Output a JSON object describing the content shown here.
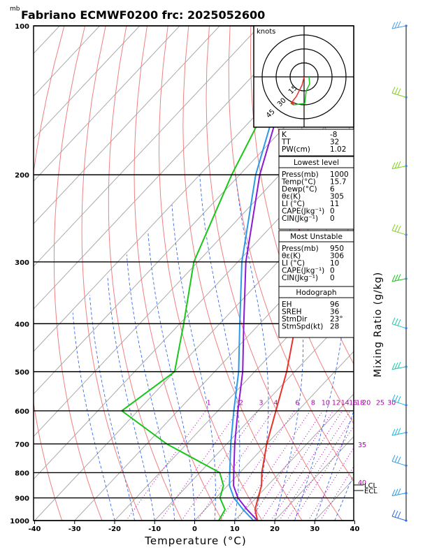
{
  "header": {
    "unit": "mb",
    "title": "Fabriano ECMWF0200 frc: 2025052600"
  },
  "chart_data": {
    "type": "skew-t",
    "xlabel": "Temperature (°C)",
    "ylabel": "Mixing Ratio (g/kg)",
    "pressure_ticks": [
      100,
      200,
      300,
      400,
      500,
      600,
      700,
      800,
      900,
      1000
    ],
    "temperature_ticks": [
      -40,
      -30,
      -20,
      -10,
      0,
      10,
      20,
      30,
      40
    ],
    "xlim": [
      -40,
      40
    ],
    "ylim": [
      1000,
      100
    ],
    "temperature_profile": [
      {
        "p": 1000,
        "t": 15.7
      },
      {
        "p": 950,
        "t": 12.5
      },
      {
        "p": 900,
        "t": 10.5
      },
      {
        "p": 850,
        "t": 8.5
      },
      {
        "p": 800,
        "t": 5.5
      },
      {
        "p": 700,
        "t": 0
      },
      {
        "p": 600,
        "t": -5.5
      },
      {
        "p": 500,
        "t": -12
      },
      {
        "p": 400,
        "t": -21
      },
      {
        "p": 300,
        "t": -34
      },
      {
        "p": 250,
        "t": -44
      },
      {
        "p": 200,
        "t": -47
      },
      {
        "p": 150,
        "t": -52
      },
      {
        "p": 100,
        "t": -56
      }
    ],
    "dewpoint_profile": [
      {
        "p": 1000,
        "t": 6
      },
      {
        "p": 950,
        "t": 5
      },
      {
        "p": 900,
        "t": 1
      },
      {
        "p": 850,
        "t": -1
      },
      {
        "p": 800,
        "t": -5
      },
      {
        "p": 700,
        "t": -25
      },
      {
        "p": 600,
        "t": -44
      },
      {
        "p": 500,
        "t": -40
      },
      {
        "p": 400,
        "t": -49
      },
      {
        "p": 300,
        "t": -61
      },
      {
        "p": 200,
        "t": -72
      },
      {
        "p": 100,
        "t": -88
      }
    ],
    "parcel_profile": [
      {
        "p": 1000,
        "t": 15.7
      },
      {
        "p": 950,
        "t": 10.5
      },
      {
        "p": 900,
        "t": 5.5
      },
      {
        "p": 850,
        "t": 1.5
      },
      {
        "p": 800,
        "t": -1.5
      },
      {
        "p": 700,
        "t": -8
      },
      {
        "p": 600,
        "t": -15
      },
      {
        "p": 500,
        "t": -23
      },
      {
        "p": 400,
        "t": -34
      },
      {
        "p": 300,
        "t": -48
      },
      {
        "p": 200,
        "t": -65
      },
      {
        "p": 150,
        "t": -75
      }
    ],
    "mixing_ratio_labels": [
      "1",
      "2",
      "3",
      "4",
      "6",
      "8",
      "10",
      "12",
      "14",
      "16",
      "18",
      "20",
      "25",
      "30"
    ],
    "isotherm_labels": [
      "35",
      "40"
    ],
    "level_markers": [
      "LCL",
      "ECL"
    ],
    "colors": {
      "temperature": "#e8322a",
      "dewpoint": "#19c619",
      "parcel": "#2a9ae8",
      "virtual": "#8a1ad8",
      "mixing": "#b000b0"
    }
  },
  "hodograph": {
    "label": "knots",
    "ring_labels": [
      "15",
      "30",
      "45"
    ]
  },
  "indices": {
    "top": [
      {
        "label": "K",
        "value": "-8"
      },
      {
        "label": "TT",
        "value": "32"
      },
      {
        "label": "PW(cm)",
        "value": "1.02"
      }
    ],
    "lowest": {
      "title": "Lowest level",
      "rows": [
        {
          "label": "Press(mb)",
          "value": "1000"
        },
        {
          "label": "Temp(°C)",
          "value": "15.7"
        },
        {
          "label": "Dewp(°C)",
          "value": "6"
        },
        {
          "label": "θε(K)",
          "value": "305"
        },
        {
          "label": "LI (°C)",
          "value": "11"
        },
        {
          "label": "CAPE(Jkg⁻¹)",
          "value": "0"
        },
        {
          "label": "CIN(Jkg⁻¹)",
          "value": "0"
        }
      ]
    },
    "unstable": {
      "title": "Most Unstable",
      "rows": [
        {
          "label": "Press(mb)",
          "value": "950"
        },
        {
          "label": "θε(K)",
          "value": "306"
        },
        {
          "label": "LI (°C)",
          "value": "10"
        },
        {
          "label": "CAPE(Jkg⁻¹)",
          "value": "0"
        },
        {
          "label": "CIN(Jkg⁻¹)",
          "value": "0"
        }
      ]
    },
    "hodo": {
      "title": "Hodograph",
      "rows": [
        {
          "label": "EH",
          "value": "96"
        },
        {
          "label": "SREH",
          "value": "36"
        },
        {
          "label": "StmDir",
          "value": "23°"
        },
        {
          "label": "StmSpd(kt)",
          "value": "28"
        }
      ]
    }
  }
}
